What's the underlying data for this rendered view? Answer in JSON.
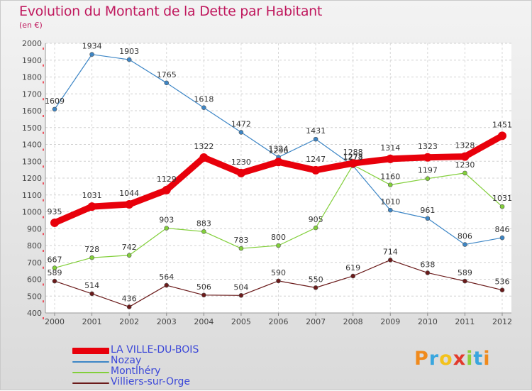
{
  "header": {
    "title": "Evolution du Montant de la Dette par Habitant",
    "subtitle": "(en €)"
  },
  "logo": {
    "text": "Proxiti"
  },
  "chart_data": {
    "type": "line",
    "title": "Evolution du Montant de la Dette par Habitant",
    "subtitle": "(en €)",
    "xlabel": "",
    "ylabel": "",
    "x": [
      "2000",
      "2001",
      "2002",
      "2003",
      "2004",
      "2005",
      "2006",
      "2007",
      "2008",
      "2009",
      "2010",
      "2011",
      "2012"
    ],
    "ylim": [
      400,
      2000
    ],
    "yticks": [
      "400",
      "500",
      "600",
      "700",
      "800",
      "900",
      "1000",
      "1100",
      "1200",
      "1300",
      "1400",
      "1500",
      "1600",
      "1700",
      "1800",
      "1900",
      "2000"
    ],
    "grid": "horizontal dashed",
    "legend_position": "bottom-left",
    "series": [
      {
        "name": "LA VILLE-DU-BOIS",
        "color": "#e8000b",
        "values": [
          935,
          1031,
          1044,
          1129,
          1322,
          1230,
          1296,
          1247,
          1288,
          1314,
          1323,
          1328,
          1451
        ],
        "labels": [
          "935",
          "1031",
          "1044",
          "1129",
          "1322",
          "1230",
          "1296",
          "1247",
          "1288",
          "1314",
          "1323",
          "1328",
          "1451"
        ]
      },
      {
        "name": "Nozay",
        "color": "#3d86c6",
        "values": [
          1609,
          1934,
          1903,
          1765,
          1618,
          1472,
          1324,
          1431,
          1273,
          1010,
          961,
          806,
          846
        ],
        "labels": [
          "1609",
          "1934",
          "1903",
          "1765",
          "1618",
          "1472",
          "1324",
          "1431",
          "1273",
          "1010",
          "961",
          "806",
          "846"
        ]
      },
      {
        "name": "Montlhéry",
        "color": "#82cf3a",
        "values": [
          667,
          728,
          742,
          903,
          883,
          783,
          800,
          905,
          1278,
          1160,
          1197,
          1230,
          1031
        ],
        "labels": [
          "667",
          "728",
          "742",
          "903",
          "883",
          "783",
          "800",
          "905",
          "1278",
          "1160",
          "1197",
          "1230",
          "1031"
        ]
      },
      {
        "name": "Villiers-sur-Orge",
        "color": "#6b1b1b",
        "values": [
          589,
          514,
          436,
          564,
          506,
          504,
          590,
          550,
          619,
          714,
          638,
          589,
          536
        ],
        "labels": [
          "589",
          "514",
          "436",
          "564",
          "506",
          "504",
          "590",
          "550",
          "619",
          "714",
          "638",
          "589",
          "536"
        ]
      }
    ]
  }
}
